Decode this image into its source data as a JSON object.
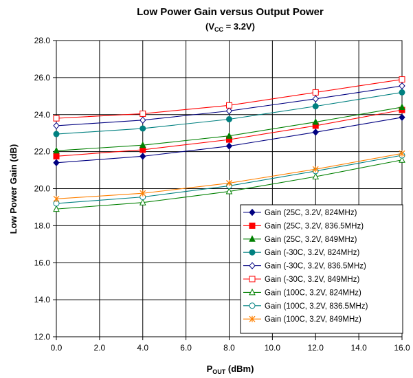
{
  "chart_data": {
    "type": "line",
    "title": "Low Power Gain versus Output Power",
    "subtitle": {
      "prefix": "(V",
      "sub": "CC",
      "suffix": " = 3.2V)"
    },
    "xlabel": {
      "main": "P",
      "sub": "OUT",
      "suffix": " (dBm)"
    },
    "ylabel": "Low Power Gain (dB)",
    "xlim": [
      0,
      16
    ],
    "ylim": [
      12,
      28
    ],
    "x_ticks": [
      "0.0",
      "2.0",
      "4.0",
      "6.0",
      "8.0",
      "10.0",
      "12.0",
      "14.0",
      "16.0"
    ],
    "y_ticks": [
      "12.0",
      "14.0",
      "16.0",
      "18.0",
      "20.0",
      "22.0",
      "24.0",
      "26.0",
      "28.0"
    ],
    "grid": true,
    "legend_position": "bottom-right",
    "x": [
      0,
      4,
      8,
      12,
      16
    ],
    "series": [
      {
        "name": "Gain (25C, 3.2V, 824MHz)",
        "color": "#000080",
        "marker": "diamond-filled",
        "values": [
          21.4,
          21.75,
          22.3,
          23.05,
          23.85
        ]
      },
      {
        "name": "Gain (25C, 3.2V, 836.5MHz)",
        "color": "#ff0000",
        "marker": "square-filled",
        "values": [
          21.75,
          22.1,
          22.65,
          23.4,
          24.25
        ]
      },
      {
        "name": "Gain (25C, 3.2V, 849MHz)",
        "color": "#008000",
        "marker": "triangle-filled",
        "values": [
          22.05,
          22.35,
          22.85,
          23.6,
          24.4
        ]
      },
      {
        "name": "Gain (-30C, 3.2V, 824MHz)",
        "color": "#008080",
        "marker": "circle-filled",
        "values": [
          22.95,
          23.25,
          23.75,
          24.45,
          25.2
        ]
      },
      {
        "name": "Gain (-30C, 3.2V, 836.5MHz)",
        "color": "#000080",
        "marker": "diamond-open",
        "values": [
          23.4,
          23.7,
          24.2,
          24.85,
          25.55
        ]
      },
      {
        "name": "Gain (-30C, 3.2V, 849MHz)",
        "color": "#ff0000",
        "marker": "square-open",
        "values": [
          23.8,
          24.05,
          24.5,
          25.2,
          25.9
        ]
      },
      {
        "name": "Gain (100C, 3.2V, 824MHz)",
        "color": "#008000",
        "marker": "triangle-open",
        "values": [
          18.9,
          19.25,
          19.85,
          20.65,
          21.55
        ]
      },
      {
        "name": "Gain (100C, 3.2V, 836.5MHz)",
        "color": "#008080",
        "marker": "circle-open",
        "values": [
          19.2,
          19.55,
          20.15,
          20.95,
          21.8
        ]
      },
      {
        "name": "Gain (100C, 3.2V, 849MHz)",
        "color": "#ff8000",
        "marker": "asterisk",
        "values": [
          19.45,
          19.75,
          20.3,
          21.05,
          21.9
        ]
      }
    ]
  }
}
